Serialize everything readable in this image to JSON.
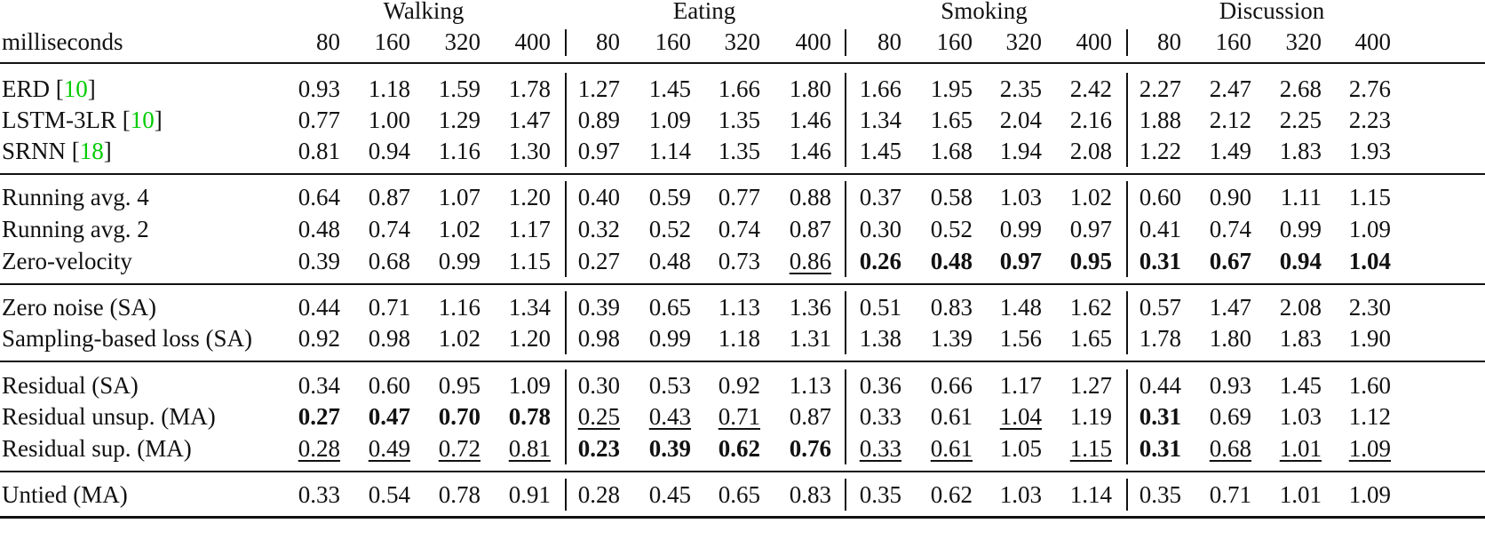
{
  "table": {
    "row_header_label": "milliseconds",
    "groups": [
      "Walking",
      "Eating",
      "Smoking",
      "Discussion"
    ],
    "horizons": [
      "80",
      "160",
      "320",
      "400"
    ],
    "sections": [
      {
        "rows": [
          {
            "method": "ERD",
            "cite": "10",
            "values": [
              "0.93",
              "1.18",
              "1.59",
              "1.78",
              "1.27",
              "1.45",
              "1.66",
              "1.80",
              "1.66",
              "1.95",
              "2.35",
              "2.42",
              "2.27",
              "2.47",
              "2.68",
              "2.76"
            ],
            "bold": [],
            "underline": []
          },
          {
            "method": "LSTM-3LR",
            "cite": "10",
            "values": [
              "0.77",
              "1.00",
              "1.29",
              "1.47",
              "0.89",
              "1.09",
              "1.35",
              "1.46",
              "1.34",
              "1.65",
              "2.04",
              "2.16",
              "1.88",
              "2.12",
              "2.25",
              "2.23"
            ],
            "bold": [],
            "underline": []
          },
          {
            "method": "SRNN",
            "cite": "18",
            "values": [
              "0.81",
              "0.94",
              "1.16",
              "1.30",
              "0.97",
              "1.14",
              "1.35",
              "1.46",
              "1.45",
              "1.68",
              "1.94",
              "2.08",
              "1.22",
              "1.49",
              "1.83",
              "1.93"
            ],
            "bold": [],
            "underline": []
          }
        ]
      },
      {
        "rows": [
          {
            "method": "Running avg. 4",
            "cite": "",
            "values": [
              "0.64",
              "0.87",
              "1.07",
              "1.20",
              "0.40",
              "0.59",
              "0.77",
              "0.88",
              "0.37",
              "0.58",
              "1.03",
              "1.02",
              "0.60",
              "0.90",
              "1.11",
              "1.15"
            ],
            "bold": [],
            "underline": []
          },
          {
            "method": "Running avg. 2",
            "cite": "",
            "values": [
              "0.48",
              "0.74",
              "1.02",
              "1.17",
              "0.32",
              "0.52",
              "0.74",
              "0.87",
              "0.30",
              "0.52",
              "0.99",
              "0.97",
              "0.41",
              "0.74",
              "0.99",
              "1.09"
            ],
            "bold": [],
            "underline": []
          },
          {
            "method": "Zero-velocity",
            "cite": "",
            "values": [
              "0.39",
              "0.68",
              "0.99",
              "1.15",
              "0.27",
              "0.48",
              "0.73",
              "0.86",
              "0.26",
              "0.48",
              "0.97",
              "0.95",
              "0.31",
              "0.67",
              "0.94",
              "1.04"
            ],
            "bold": [
              8,
              9,
              10,
              11,
              12,
              13,
              14,
              15
            ],
            "underline": [
              7
            ]
          }
        ]
      },
      {
        "rows": [
          {
            "method": "Zero noise (SA)",
            "cite": "",
            "values": [
              "0.44",
              "0.71",
              "1.16",
              "1.34",
              "0.39",
              "0.65",
              "1.13",
              "1.36",
              "0.51",
              "0.83",
              "1.48",
              "1.62",
              "0.57",
              "1.47",
              "2.08",
              "2.30"
            ],
            "bold": [],
            "underline": []
          },
          {
            "method": "Sampling-based loss (SA)",
            "cite": "",
            "values": [
              "0.92",
              "0.98",
              "1.02",
              "1.20",
              "0.98",
              "0.99",
              "1.18",
              "1.31",
              "1.38",
              "1.39",
              "1.56",
              "1.65",
              "1.78",
              "1.80",
              "1.83",
              "1.90"
            ],
            "bold": [],
            "underline": []
          }
        ]
      },
      {
        "rows": [
          {
            "method": "Residual (SA)",
            "cite": "",
            "values": [
              "0.34",
              "0.60",
              "0.95",
              "1.09",
              "0.30",
              "0.53",
              "0.92",
              "1.13",
              "0.36",
              "0.66",
              "1.17",
              "1.27",
              "0.44",
              "0.93",
              "1.45",
              "1.60"
            ],
            "bold": [],
            "underline": []
          },
          {
            "method": "Residual unsup. (MA)",
            "cite": "",
            "values": [
              "0.27",
              "0.47",
              "0.70",
              "0.78",
              "0.25",
              "0.43",
              "0.71",
              "0.87",
              "0.33",
              "0.61",
              "1.04",
              "1.19",
              "0.31",
              "0.69",
              "1.03",
              "1.12"
            ],
            "bold": [
              0,
              1,
              2,
              3,
              12
            ],
            "underline": [
              4,
              5,
              6,
              10
            ]
          },
          {
            "method": "Residual sup. (MA)",
            "cite": "",
            "values": [
              "0.28",
              "0.49",
              "0.72",
              "0.81",
              "0.23",
              "0.39",
              "0.62",
              "0.76",
              "0.33",
              "0.61",
              "1.05",
              "1.15",
              "0.31",
              "0.68",
              "1.01",
              "1.09"
            ],
            "bold": [
              4,
              5,
              6,
              7,
              12
            ],
            "underline": [
              0,
              1,
              2,
              3,
              8,
              9,
              11,
              13,
              14,
              15
            ]
          }
        ]
      },
      {
        "rows": [
          {
            "method": "Untied (MA)",
            "cite": "",
            "values": [
              "0.33",
              "0.54",
              "0.78",
              "0.91",
              "0.28",
              "0.45",
              "0.65",
              "0.83",
              "0.35",
              "0.62",
              "1.03",
              "1.14",
              "0.35",
              "0.71",
              "1.01",
              "1.09"
            ],
            "bold": [],
            "underline": []
          }
        ]
      }
    ]
  },
  "colors": {
    "text": "#111111",
    "citation": "#00cc00",
    "background": "#ffffff"
  }
}
